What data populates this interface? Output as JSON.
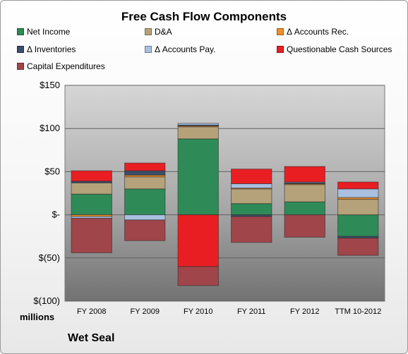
{
  "chart_data": {
    "type": "bar",
    "stacked": true,
    "title": "Free Cash Flow Components",
    "unit_label": "millions",
    "company": "Wet Seal",
    "categories": [
      "FY 2008",
      "FY 2009",
      "FY 2010",
      "FY 2011",
      "FY 2012",
      "TTM 10-2012"
    ],
    "ylim": [
      -100,
      150
    ],
    "yticks": [
      {
        "value": 150,
        "label": "$150"
      },
      {
        "value": 100,
        "label": "$100"
      },
      {
        "value": 50,
        "label": "$50"
      },
      {
        "value": 0,
        "label": "$-"
      },
      {
        "value": -50,
        "label": "$(50)"
      },
      {
        "value": -100,
        "label": "$(100)"
      }
    ],
    "grid": true,
    "legend_position": "top",
    "series": [
      {
        "name": "Net Income",
        "color": "#2e8b57",
        "values": [
          24,
          30,
          88,
          13,
          15,
          -25
        ]
      },
      {
        "name": "D&A",
        "color": "#b5a27a",
        "values": [
          13,
          14,
          14,
          17,
          20,
          18
        ]
      },
      {
        "name": "Δ Accounts Rec.",
        "color": "#f0902a",
        "values": [
          -2,
          2,
          1,
          1,
          1,
          2
        ]
      },
      {
        "name": "Δ Inventories",
        "color": "#3c4e6a",
        "values": [
          2,
          5,
          1,
          -2,
          1,
          -2
        ]
      },
      {
        "name": "Δ Accounts Pay.",
        "color": "#a9c0e0",
        "values": [
          -2,
          -6,
          2,
          5,
          1,
          10
        ]
      },
      {
        "name": "Questionable Cash Sources",
        "color": "#e81e23",
        "values": [
          12,
          9,
          -60,
          17,
          18,
          8
        ]
      },
      {
        "name": "Capital Expenditures",
        "color": "#a0454a",
        "values": [
          -40,
          -24,
          -22,
          -30,
          -26,
          -20
        ]
      }
    ]
  }
}
